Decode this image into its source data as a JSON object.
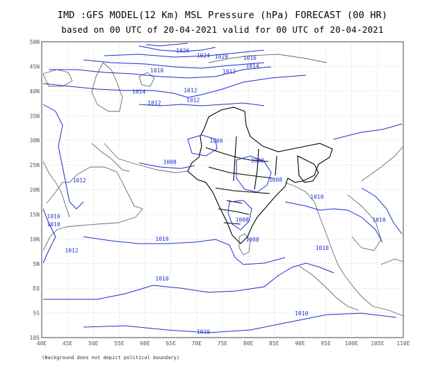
{
  "title": "IMD :GFS MODEL(12 Km) MSL Pressure (hPa) FORECAST (00 HR)",
  "subtitle": "based on 00 UTC of 20-04-2021 valid for 00 UTC of 20-04-2021",
  "footnote": "(Background does not depict political boundary)",
  "colors": {
    "isobar": "#1a2fd0",
    "coast": "#6a6a6a",
    "boundary": "#000000",
    "grid": "#9a9a9a"
  },
  "lon_ticks": [
    "40E",
    "45E",
    "50E",
    "55E",
    "60E",
    "65E",
    "70E",
    "75E",
    "80E",
    "85E",
    "90E",
    "95E",
    "100E",
    "105E",
    "110E"
  ],
  "lat_ticks": [
    "50N",
    "45N",
    "40N",
    "35N",
    "30N",
    "25N",
    "20N",
    "15N",
    "10N",
    "5N",
    "EQ",
    "5S",
    "10S"
  ],
  "isobar_labels": [
    {
      "text": "1026",
      "lon": 66,
      "lat": 47.8
    },
    {
      "text": "1024",
      "lon": 70,
      "lat": 46.8
    },
    {
      "text": "1020",
      "lon": 73.5,
      "lat": 46.6
    },
    {
      "text": "1016",
      "lon": 79,
      "lat": 46.3
    },
    {
      "text": "1018",
      "lon": 61,
      "lat": 43.8
    },
    {
      "text": "1014",
      "lon": 79.5,
      "lat": 44.7
    },
    {
      "text": "1012",
      "lon": 75,
      "lat": 43.6
    },
    {
      "text": "1014",
      "lon": 57.5,
      "lat": 39.5
    },
    {
      "text": "1012",
      "lon": 67.5,
      "lat": 39.8
    },
    {
      "text": "1012",
      "lon": 68,
      "lat": 37.8
    },
    {
      "text": "1012",
      "lon": 60.5,
      "lat": 37.2
    },
    {
      "text": "1006",
      "lon": 72.5,
      "lat": 29.5
    },
    {
      "text": "1008",
      "lon": 63.5,
      "lat": 25.2
    },
    {
      "text": "1008",
      "lon": 80.5,
      "lat": 25.5
    },
    {
      "text": "1008",
      "lon": 84,
      "lat": 21.6
    },
    {
      "text": "1012",
      "lon": 46,
      "lat": 21.5
    },
    {
      "text": "1010",
      "lon": 41,
      "lat": 14.2
    },
    {
      "text": "1010",
      "lon": 41,
      "lat": 12.6
    },
    {
      "text": "1012",
      "lon": 44.5,
      "lat": 7.3
    },
    {
      "text": "1008",
      "lon": 77.5,
      "lat": 13.5
    },
    {
      "text": "1008",
      "lon": 79.5,
      "lat": 9.5
    },
    {
      "text": "1010",
      "lon": 62,
      "lat": 9.6
    },
    {
      "text": "1010",
      "lon": 92,
      "lat": 18.2
    },
    {
      "text": "1010",
      "lon": 104,
      "lat": 13.5
    },
    {
      "text": "1010",
      "lon": 93,
      "lat": 7.8
    },
    {
      "text": "1010",
      "lon": 62,
      "lat": 1.6
    },
    {
      "text": "1010",
      "lon": 89,
      "lat": -5.5
    },
    {
      "text": "1010",
      "lon": 70,
      "lat": -9.2
    }
  ]
}
